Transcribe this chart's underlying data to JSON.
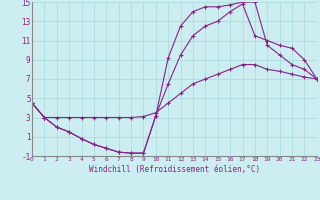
{
  "xlabel": "Windchill (Refroidissement éolien,°C)",
  "xlim": [
    0,
    23
  ],
  "ylim": [
    -1,
    15
  ],
  "xticks": [
    0,
    1,
    2,
    3,
    4,
    5,
    6,
    7,
    8,
    9,
    10,
    11,
    12,
    13,
    14,
    15,
    16,
    17,
    18,
    19,
    20,
    21,
    22,
    23
  ],
  "yticks": [
    -1,
    1,
    3,
    5,
    7,
    9,
    11,
    13,
    15
  ],
  "bg_color": "#cceef0",
  "line_color": "#882288",
  "grid_color": "#aadddd",
  "line1_x": [
    0,
    1,
    2,
    3,
    4,
    5,
    6,
    7,
    8,
    9,
    10,
    11,
    12,
    13,
    14,
    15,
    16,
    17,
    18,
    19,
    20,
    21,
    22,
    23
  ],
  "line1_y": [
    4.5,
    3.0,
    2.0,
    1.5,
    0.8,
    0.2,
    -0.2,
    -0.6,
    -0.7,
    -0.7,
    3.2,
    9.2,
    12.5,
    14.0,
    14.5,
    14.5,
    14.7,
    15.0,
    15.0,
    10.5,
    9.5,
    8.5,
    8.0,
    7.0
  ],
  "line2_x": [
    0,
    1,
    2,
    3,
    4,
    5,
    6,
    7,
    8,
    9,
    10,
    11,
    12,
    13,
    14,
    15,
    16,
    17,
    18,
    19,
    20,
    21,
    22,
    23
  ],
  "line2_y": [
    4.5,
    3.0,
    2.0,
    1.5,
    0.8,
    0.2,
    -0.2,
    -0.6,
    -0.7,
    -0.7,
    3.2,
    6.5,
    9.5,
    11.5,
    12.5,
    13.0,
    14.0,
    14.8,
    11.5,
    11.0,
    10.5,
    10.2,
    9.0,
    7.0
  ],
  "line3_x": [
    0,
    1,
    2,
    3,
    4,
    5,
    6,
    7,
    8,
    9,
    10,
    11,
    12,
    13,
    14,
    15,
    16,
    17,
    18,
    19,
    20,
    21,
    22,
    23
  ],
  "line3_y": [
    4.5,
    3.0,
    3.0,
    3.0,
    3.0,
    3.0,
    3.0,
    3.0,
    3.0,
    3.1,
    3.5,
    4.5,
    5.5,
    6.5,
    7.0,
    7.5,
    8.0,
    8.5,
    8.5,
    8.0,
    7.8,
    7.5,
    7.2,
    7.0
  ]
}
